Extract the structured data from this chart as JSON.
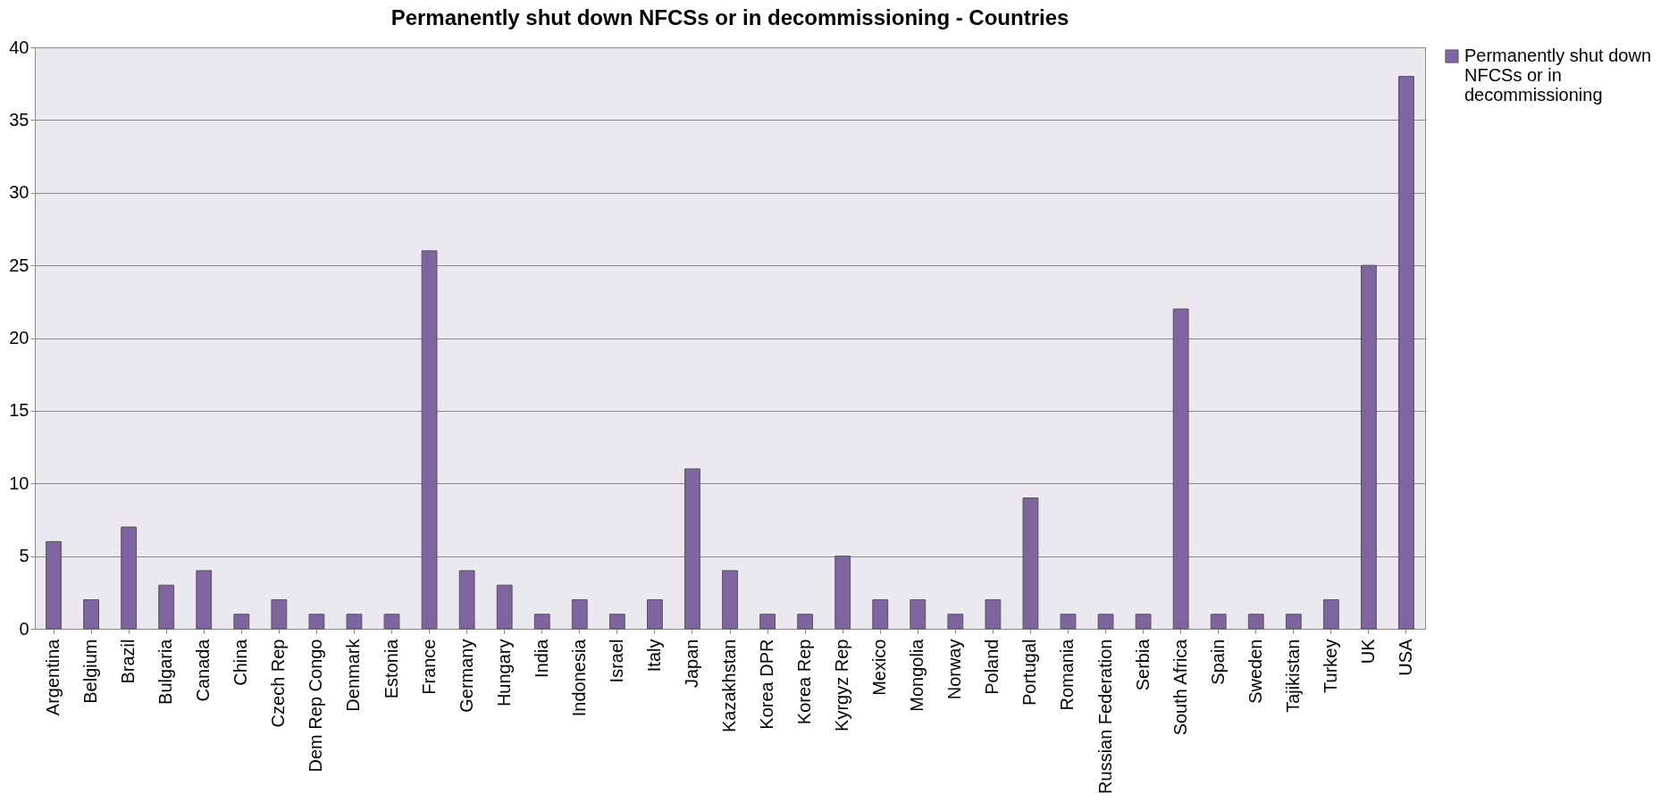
{
  "chart_data": {
    "type": "bar",
    "title": "Permanently shut down NFCSs or in decommissioning - Countries",
    "categories": [
      "Argentina",
      "Belgium",
      "Brazil",
      "Bulgaria",
      "Canada",
      "China",
      "Czech Rep",
      "Dem Rep Congo",
      "Denmark",
      "Estonia",
      "France",
      "Germany",
      "Hungary",
      "India",
      "Indonesia",
      "Israel",
      "Italy",
      "Japan",
      "Kazakhstan",
      "Korea DPR",
      "Korea Rep",
      "Kyrgyz Rep",
      "Mexico",
      "Mongolia",
      "Norway",
      "Poland",
      "Portugal",
      "Romania",
      "Russian Federation",
      "Serbia",
      "South Africa",
      "Spain",
      "Sweden",
      "Tajikistan",
      "Turkey",
      "UK",
      "USA"
    ],
    "series": [
      {
        "name": "Permanently shut down NFCSs or in decommissioning",
        "color": "#8064a2",
        "values": [
          6,
          2,
          7,
          3,
          4,
          1,
          2,
          1,
          1,
          1,
          26,
          4,
          3,
          1,
          2,
          1,
          2,
          11,
          4,
          1,
          1,
          5,
          2,
          2,
          1,
          2,
          9,
          1,
          1,
          1,
          22,
          1,
          1,
          1,
          2,
          25,
          38
        ]
      }
    ],
    "ylim": [
      0,
      40
    ],
    "yticks": [
      0,
      5,
      10,
      15,
      20,
      25,
      30,
      35,
      40
    ],
    "grid": "y",
    "legend": "right"
  }
}
